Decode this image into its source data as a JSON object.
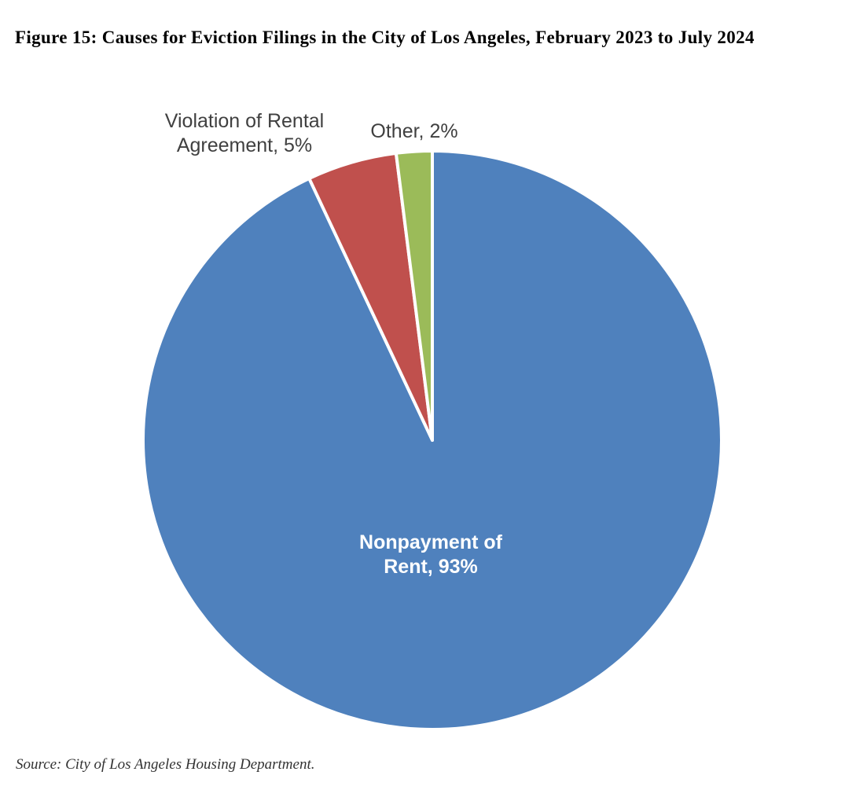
{
  "figure": {
    "title": "Figure 15: Causes for Eviction Filings in the City of Los Angeles, February 2023 to July 2024",
    "source": "Source: City of Los Angeles Housing Department."
  },
  "chart_data": {
    "type": "pie",
    "title": "Figure 15: Causes for Eviction Filings in the City of Los Angeles, February 2023 to July 2024",
    "start_angle": "12 o'clock",
    "direction": "clockwise",
    "slice_border_color": "#ffffff",
    "slices": [
      {
        "label": "Nonpayment of Rent",
        "value": 93,
        "color": "#4f81bd",
        "data_label": [
          "Nonpayment of",
          "Rent, 93%"
        ],
        "label_placement": "inside",
        "label_color": "#ffffff"
      },
      {
        "label": "Violation of Rental Agreement",
        "value": 5,
        "color": "#c0504d",
        "data_label": [
          "Violation of Rental",
          "Agreement, 5%"
        ],
        "label_placement": "outside",
        "label_color": "#404040"
      },
      {
        "label": "Other",
        "value": 2,
        "color": "#9bbb59",
        "data_label": [
          "Other, 2%"
        ],
        "label_placement": "outside",
        "label_color": "#404040"
      }
    ]
  }
}
